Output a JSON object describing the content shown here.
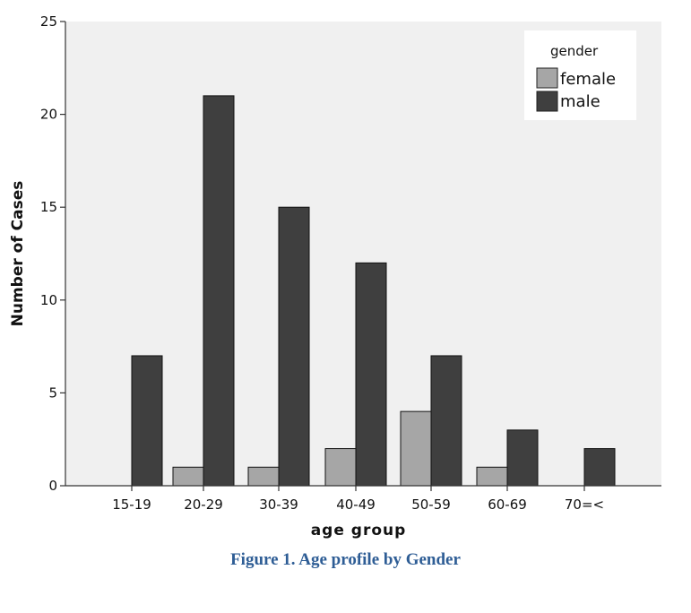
{
  "chart_data": {
    "type": "bar",
    "categories": [
      "15-19",
      "20-29",
      "30-39",
      "40-49",
      "50-59",
      "60-69",
      "70=<"
    ],
    "series": [
      {
        "name": "female",
        "values": [
          0,
          1,
          1,
          2,
          4,
          1,
          0
        ],
        "color": "#a6a6a6"
      },
      {
        "name": "male",
        "values": [
          7,
          21,
          15,
          12,
          7,
          3,
          2
        ],
        "color": "#3f3f3f"
      }
    ],
    "xlabel": "age group",
    "ylabel": "Number of Cases",
    "ylim": [
      0,
      25
    ],
    "yticks": [
      0,
      5,
      10,
      15,
      20,
      25
    ],
    "legend_title": "gender",
    "legend_position": "top-right",
    "grid": false,
    "plot_background": "#f0f0f0"
  },
  "caption": "Figure 1. Age profile by Gender"
}
